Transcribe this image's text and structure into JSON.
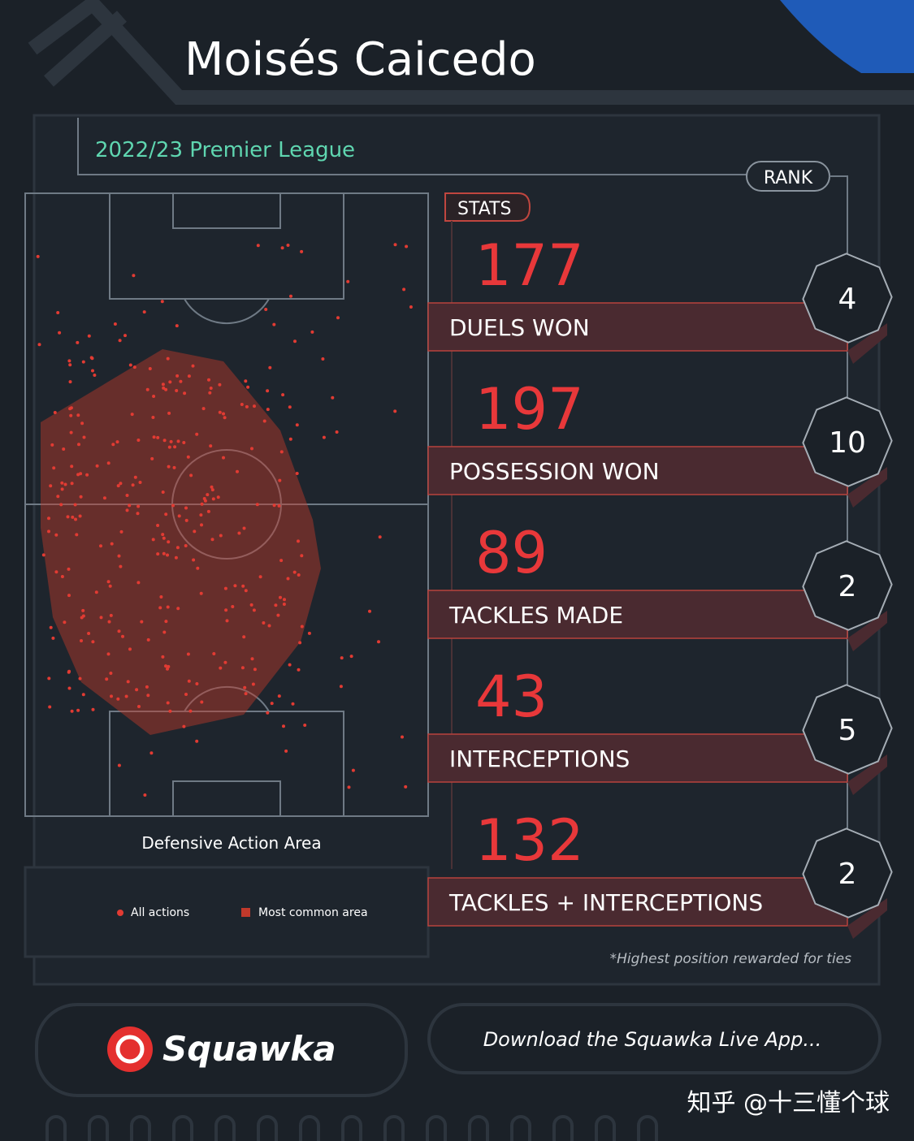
{
  "header": {
    "title": "Moisés Caicedo",
    "subtitle": "2022/23 Premier League"
  },
  "pitch": {
    "caption": "Defensive Action Area",
    "legend": [
      "All actions",
      "Most common area"
    ]
  },
  "stats": {
    "heading": "STATS",
    "rank_heading": "RANK",
    "rows": [
      {
        "value": 177,
        "label": "DUELS WON",
        "rank": 4
      },
      {
        "value": 197,
        "label": "POSSESSION WON",
        "rank": 10
      },
      {
        "value": 89,
        "label": "TACKLES MADE",
        "rank": 2
      },
      {
        "value": 43,
        "label": "INTERCEPTIONS",
        "rank": 5
      },
      {
        "value": 132,
        "label": "TACKLES + INTERCEPTIONS",
        "rank": 2
      }
    ],
    "footnote": "*Highest position rewarded for ties"
  },
  "footer": {
    "brand": "Squawka",
    "cta": "Download the Squawka Live App...",
    "watermark": "知乎 @十三懂个球"
  }
}
